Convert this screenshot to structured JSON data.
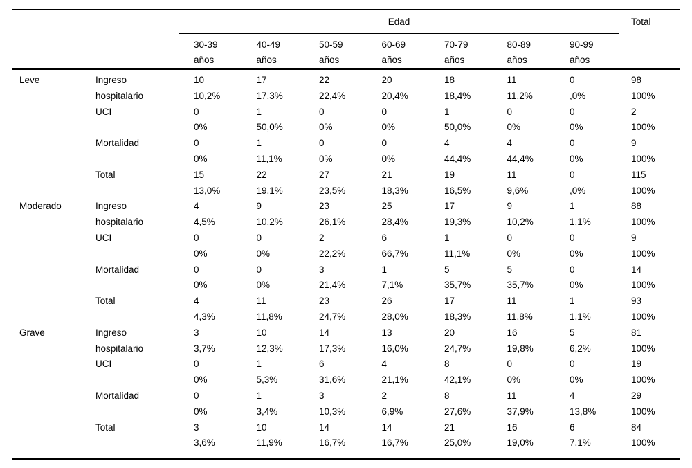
{
  "colors": {
    "background": "#ffffff",
    "text": "#000000",
    "rule": "#000000"
  },
  "table": {
    "age_header": "Edad",
    "total_header": "Total",
    "age_columns": [
      {
        "line1": "30-39",
        "line2": "años"
      },
      {
        "line1": "40-49",
        "line2": "años"
      },
      {
        "line1": "50-59",
        "line2": "años"
      },
      {
        "line1": "60-69",
        "line2": "años"
      },
      {
        "line1": "70-79",
        "line2": "años"
      },
      {
        "line1": "80-89",
        "line2": "años"
      },
      {
        "line1": "90-99",
        "line2": "años"
      }
    ],
    "groups": [
      {
        "name": "Leve",
        "rows": [
          {
            "label_lines": [
              "Ingreso",
              "hospitalario"
            ],
            "counts": [
              "10",
              "17",
              "22",
              "20",
              "18",
              "11",
              "0",
              "98"
            ],
            "pcts": [
              "10,2%",
              "17,3%",
              "22,4%",
              "20,4%",
              "18,4%",
              "11,2%",
              ",0%",
              "100%"
            ]
          },
          {
            "label_lines": [
              "UCI"
            ],
            "counts": [
              "0",
              "1",
              "0",
              "0",
              "1",
              "0",
              "0",
              "2"
            ],
            "pcts": [
              "0%",
              "50,0%",
              "0%",
              "0%",
              "50,0%",
              "0%",
              "0%",
              "100%"
            ]
          },
          {
            "label_lines": [
              "Mortalidad"
            ],
            "counts": [
              "0",
              "1",
              "0",
              "0",
              "4",
              "4",
              "0",
              "9"
            ],
            "pcts": [
              "0%",
              "11,1%",
              "0%",
              "0%",
              "44,4%",
              "44,4%",
              "0%",
              "100%"
            ]
          },
          {
            "label_lines": [
              "Total"
            ],
            "counts": [
              "15",
              "22",
              "27",
              "21",
              "19",
              "11",
              "0",
              "115"
            ],
            "pcts": [
              "13,0%",
              "19,1%",
              "23,5%",
              "18,3%",
              "16,5%",
              "9,6%",
              ",0%",
              "100%"
            ]
          }
        ]
      },
      {
        "name": "Moderado",
        "rows": [
          {
            "label_lines": [
              "Ingreso",
              "hospitalario"
            ],
            "counts": [
              "4",
              "9",
              "23",
              "25",
              "17",
              "9",
              "1",
              "88"
            ],
            "pcts": [
              "4,5%",
              "10,2%",
              "26,1%",
              "28,4%",
              "19,3%",
              "10,2%",
              "1,1%",
              "100%"
            ]
          },
          {
            "label_lines": [
              "UCI"
            ],
            "counts": [
              "0",
              "0",
              "2",
              "6",
              "1",
              "0",
              "0",
              "9"
            ],
            "pcts": [
              "0%",
              "0%",
              "22,2%",
              "66,7%",
              "11,1%",
              "0%",
              "0%",
              "100%"
            ]
          },
          {
            "label_lines": [
              "Mortalidad"
            ],
            "counts": [
              "0",
              "0",
              "3",
              "1",
              "5",
              "5",
              "0",
              "14"
            ],
            "pcts": [
              "0%",
              "0%",
              "21,4%",
              "7,1%",
              "35,7%",
              "35,7%",
              "0%",
              "100%"
            ]
          },
          {
            "label_lines": [
              "Total"
            ],
            "counts": [
              "4",
              "11",
              "23",
              "26",
              "17",
              "11",
              "1",
              "93"
            ],
            "pcts": [
              "4,3%",
              "11,8%",
              "24,7%",
              "28,0%",
              "18,3%",
              "11,8%",
              "1,1%",
              "100%"
            ]
          }
        ]
      },
      {
        "name": "Grave",
        "rows": [
          {
            "label_lines": [
              "Ingreso",
              "hospitalario"
            ],
            "counts": [
              "3",
              "10",
              "14",
              "13",
              "20",
              "16",
              "5",
              "81"
            ],
            "pcts": [
              "3,7%",
              "12,3%",
              "17,3%",
              "16,0%",
              "24,7%",
              "19,8%",
              "6,2%",
              "100%"
            ]
          },
          {
            "label_lines": [
              "UCI"
            ],
            "counts": [
              "0",
              "1",
              "6",
              "4",
              "8",
              "0",
              "0",
              "19"
            ],
            "pcts": [
              "0%",
              "5,3%",
              "31,6%",
              "21,1%",
              "42,1%",
              "0%",
              "0%",
              "100%"
            ]
          },
          {
            "label_lines": [
              "Mortalidad"
            ],
            "counts": [
              "0",
              "1",
              "3",
              "2",
              "8",
              "11",
              "4",
              "29"
            ],
            "pcts": [
              "0%",
              "3,4%",
              "10,3%",
              "6,9%",
              "27,6%",
              "37,9%",
              "13,8%",
              "100%"
            ]
          },
          {
            "label_lines": [
              "Total"
            ],
            "counts": [
              "3",
              "10",
              "14",
              "14",
              "21",
              "16",
              "6",
              "84"
            ],
            "pcts": [
              "3,6%",
              "11,9%",
              "16,7%",
              "16,7%",
              "25,0%",
              "19,0%",
              "7,1%",
              "100%"
            ]
          }
        ]
      }
    ]
  }
}
